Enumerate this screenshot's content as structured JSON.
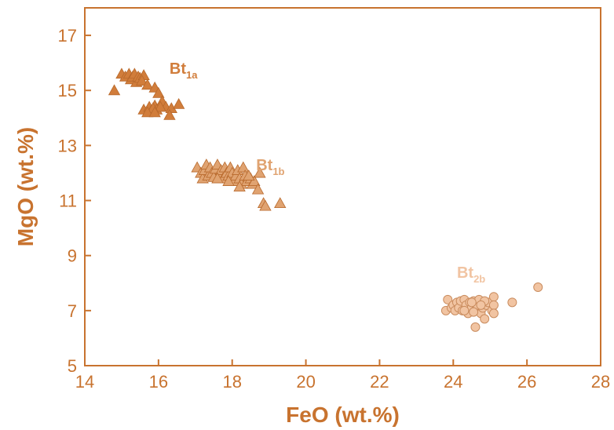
{
  "chart_data": {
    "type": "scatter",
    "xlabel": "FeO (wt.%)",
    "ylabel": "MgO (wt.%)",
    "xlim": [
      14,
      28
    ],
    "ylim": [
      5,
      18
    ],
    "xticks": [
      14,
      16,
      18,
      20,
      22,
      24,
      26,
      28
    ],
    "yticks": [
      5,
      7,
      9,
      11,
      13,
      15,
      17
    ],
    "grid": false,
    "colors": {
      "axis": "#c8732f",
      "Bt1a": "#d17d3b",
      "Bt1b": "#e0a371",
      "Bt2b": "#f1c4a2"
    },
    "series": [
      {
        "name": "Bt1a",
        "label_main": "Bt",
        "label_sub": "1a",
        "marker": "triangle",
        "label_at": [
          16.3,
          15.6
        ],
        "points": [
          [
            14.8,
            15.0
          ],
          [
            15.0,
            15.6
          ],
          [
            15.1,
            15.5
          ],
          [
            15.2,
            15.6
          ],
          [
            15.25,
            15.4
          ],
          [
            15.3,
            15.5
          ],
          [
            15.35,
            15.6
          ],
          [
            15.4,
            15.3
          ],
          [
            15.45,
            15.5
          ],
          [
            15.5,
            15.45
          ],
          [
            15.6,
            15.55
          ],
          [
            15.55,
            15.35
          ],
          [
            15.7,
            15.2
          ],
          [
            15.9,
            15.1
          ],
          [
            16.0,
            14.9
          ],
          [
            16.1,
            14.6
          ],
          [
            16.2,
            14.4
          ],
          [
            16.35,
            14.35
          ],
          [
            16.55,
            14.5
          ],
          [
            15.6,
            14.3
          ],
          [
            15.75,
            14.4
          ],
          [
            15.8,
            14.25
          ],
          [
            15.9,
            14.45
          ],
          [
            15.95,
            14.3
          ],
          [
            16.05,
            14.4
          ],
          [
            16.3,
            14.1
          ],
          [
            15.85,
            14.35
          ],
          [
            15.7,
            14.2
          ],
          [
            15.9,
            14.2
          ]
        ]
      },
      {
        "name": "Bt1b",
        "label_main": "Bt",
        "label_sub": "1b",
        "marker": "triangle",
        "label_at": [
          18.65,
          12.1
        ],
        "points": [
          [
            17.05,
            12.2
          ],
          [
            17.15,
            12.0
          ],
          [
            17.2,
            11.8
          ],
          [
            17.25,
            12.1
          ],
          [
            17.3,
            12.3
          ],
          [
            17.35,
            11.9
          ],
          [
            17.4,
            12.2
          ],
          [
            17.45,
            12.0
          ],
          [
            17.5,
            11.85
          ],
          [
            17.55,
            12.15
          ],
          [
            17.6,
            12.3
          ],
          [
            17.65,
            11.9
          ],
          [
            17.7,
            12.1
          ],
          [
            17.75,
            11.8
          ],
          [
            17.8,
            12.2
          ],
          [
            17.85,
            12.0
          ],
          [
            17.9,
            11.9
          ],
          [
            17.95,
            12.2
          ],
          [
            18.0,
            12.0
          ],
          [
            18.05,
            11.7
          ],
          [
            18.1,
            11.9
          ],
          [
            18.15,
            12.1
          ],
          [
            18.2,
            11.8
          ],
          [
            18.25,
            11.6
          ],
          [
            18.3,
            12.2
          ],
          [
            18.35,
            11.9
          ],
          [
            18.4,
            11.7
          ],
          [
            18.5,
            11.8
          ],
          [
            18.55,
            11.6
          ],
          [
            18.6,
            11.7
          ],
          [
            18.7,
            11.4
          ],
          [
            18.75,
            12.0
          ],
          [
            18.85,
            10.9
          ],
          [
            18.9,
            10.8
          ],
          [
            19.3,
            10.9
          ],
          [
            17.6,
            11.8
          ],
          [
            17.9,
            11.7
          ],
          [
            18.2,
            11.5
          ],
          [
            18.45,
            11.9
          ]
        ]
      },
      {
        "name": "Bt2b",
        "label_main": "Bt",
        "label_sub": "2b",
        "marker": "circle",
        "label_at": [
          24.1,
          8.2
        ],
        "points": [
          [
            23.8,
            7.0
          ],
          [
            23.85,
            7.4
          ],
          [
            23.95,
            7.1
          ],
          [
            24.0,
            7.2
          ],
          [
            24.05,
            7.0
          ],
          [
            24.1,
            7.3
          ],
          [
            24.15,
            7.1
          ],
          [
            24.2,
            7.35
          ],
          [
            24.25,
            7.0
          ],
          [
            24.3,
            7.4
          ],
          [
            24.35,
            7.2
          ],
          [
            24.4,
            6.9
          ],
          [
            24.45,
            7.3
          ],
          [
            24.5,
            7.1
          ],
          [
            24.55,
            7.35
          ],
          [
            24.6,
            6.4
          ],
          [
            24.6,
            7.0
          ],
          [
            24.65,
            7.2
          ],
          [
            24.7,
            7.4
          ],
          [
            24.75,
            6.9
          ],
          [
            24.8,
            7.1
          ],
          [
            24.85,
            6.7
          ],
          [
            24.9,
            7.2
          ],
          [
            24.95,
            7.3
          ],
          [
            25.05,
            7.0
          ],
          [
            25.1,
            7.5
          ],
          [
            25.1,
            7.2
          ],
          [
            25.1,
            6.9
          ],
          [
            25.6,
            7.3
          ],
          [
            26.3,
            7.85
          ],
          [
            24.3,
            7.0
          ],
          [
            24.5,
            7.3
          ],
          [
            24.85,
            7.35
          ],
          [
            24.55,
            6.95
          ],
          [
            24.75,
            7.2
          ]
        ]
      }
    ]
  }
}
